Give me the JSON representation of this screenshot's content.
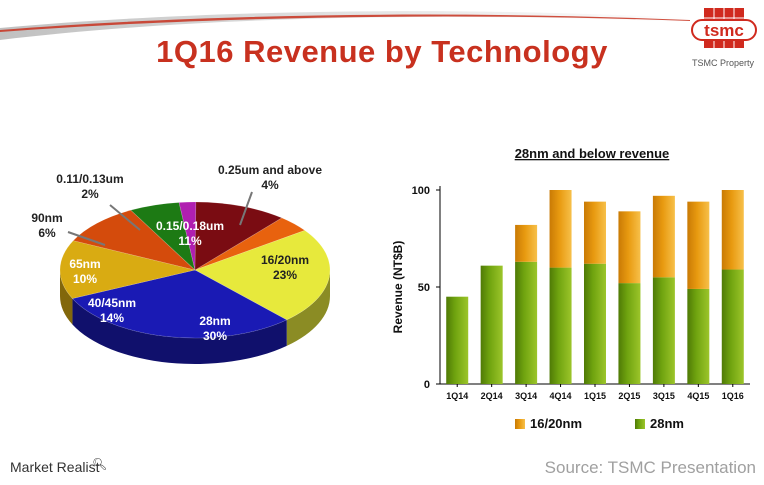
{
  "page": {
    "title": "1Q16 Revenue by Technology",
    "logo_text": "tsmc",
    "logo_caption": "TSMC Property",
    "brand": "Market Realist",
    "source": "Source: TSMC Presentation"
  },
  "colors": {
    "title": "#c8311f",
    "bar_28nm": "#6fa30f",
    "bar_1620nm": "#e89a10",
    "logo": "#d02a1e"
  },
  "chart_data": [
    {
      "type": "pie",
      "title": "",
      "slices": [
        {
          "label": "0.25um and above",
          "value": 4,
          "pct": "4%",
          "color": "#e8620e"
        },
        {
          "label": "16/20nm",
          "value": 23,
          "pct": "23%",
          "color": "#e7e93c"
        },
        {
          "label": "28nm",
          "value": 30,
          "pct": "30%",
          "color": "#1a1ab4"
        },
        {
          "label": "40/45nm",
          "value": 14,
          "pct": "14%",
          "color": "#d9ab12"
        },
        {
          "label": "65nm",
          "value": 10,
          "pct": "10%",
          "color": "#d44b0c"
        },
        {
          "label": "90nm",
          "value": 6,
          "pct": "6%",
          "color": "#1d7a14"
        },
        {
          "label": "0.11/0.13um",
          "value": 2,
          "pct": "2%",
          "color": "#b01fb0"
        },
        {
          "label": "0.15/0.18um",
          "value": 11,
          "pct": "11%",
          "color": "#7a0c12"
        }
      ]
    },
    {
      "type": "bar",
      "stacked": true,
      "title": "28nm and below revenue",
      "ylabel": "Revenue (NT$B)",
      "xlabel": "",
      "ylim": [
        0,
        100
      ],
      "yticks": [
        0,
        50,
        100
      ],
      "categories": [
        "1Q14",
        "2Q14",
        "3Q14",
        "4Q14",
        "1Q15",
        "2Q15",
        "3Q15",
        "4Q15",
        "1Q16"
      ],
      "series": [
        {
          "name": "28nm",
          "values": [
            45,
            61,
            63,
            60,
            62,
            52,
            55,
            49,
            59
          ]
        },
        {
          "name": "16/20nm",
          "values": [
            0,
            0,
            19,
            40,
            32,
            37,
            42,
            45,
            41
          ]
        }
      ],
      "legend": "bottom"
    }
  ]
}
